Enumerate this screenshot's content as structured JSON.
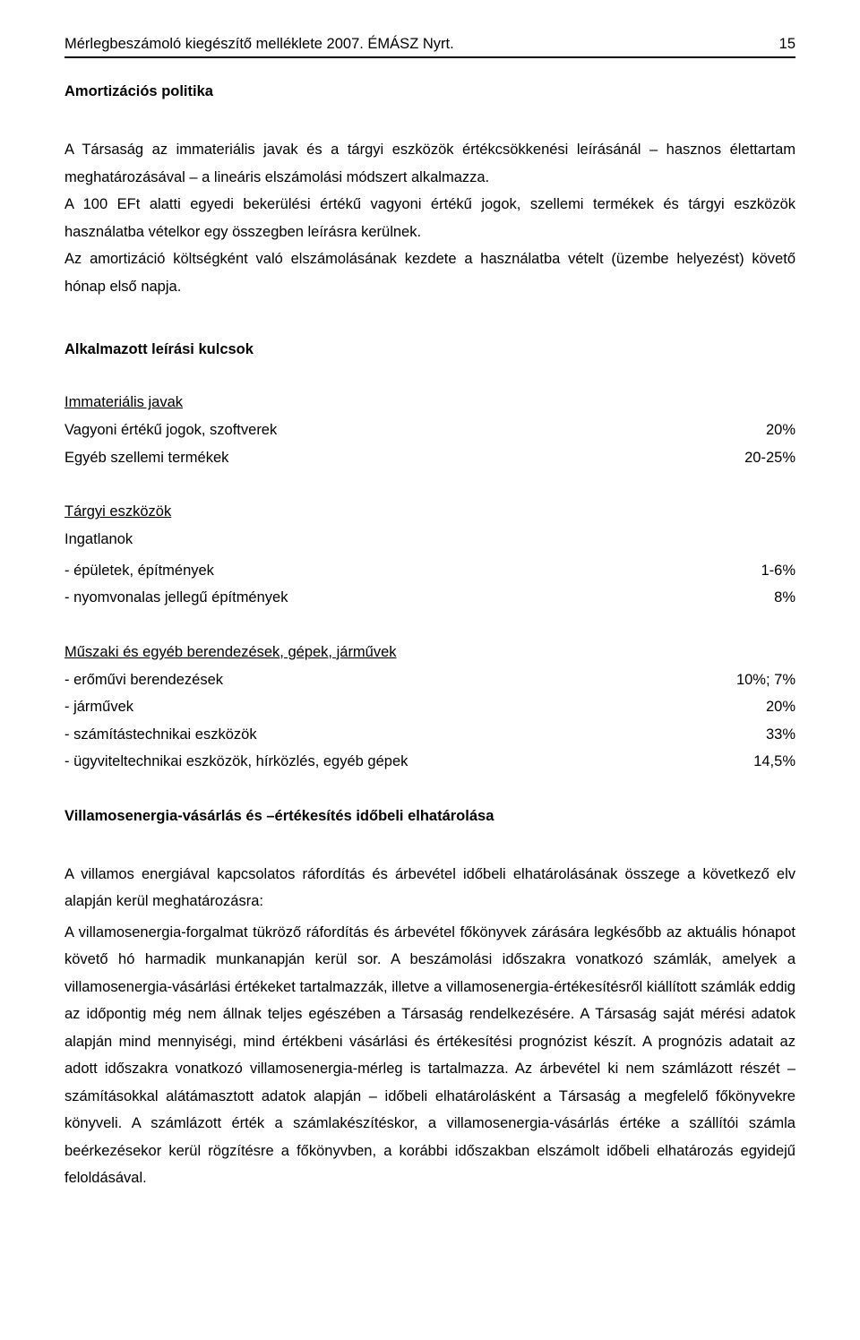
{
  "header": {
    "left": "Mérlegbeszámoló kiegészítő melléklete 2007. ÉMÁSZ Nyrt.",
    "page_number": "15"
  },
  "section_title": "Amortizációs politika",
  "paragraph_1": "A Társaság az immateriális javak és a tárgyi eszközök értékcsökkenési leírásánál – hasznos élettartam meghatározásával – a lineáris elszámolási módszert alkalmazza.",
  "paragraph_2": "A 100 EFt alatti egyedi bekerülési értékű vagyoni értékű jogok, szellemi termékek és tárgyi eszközök használatba vételkor egy összegben leírásra kerülnek.",
  "paragraph_3": "Az amortizáció költségként való elszámolásának kezdete a használatba vételt (üzembe helyezést) követő hónap első napja.",
  "rates_heading": "Alkalmazott leírási kulcsok",
  "group_immaterial": {
    "title": "Immateriális javak",
    "rows": [
      {
        "label": "Vagyoni értékű jogok, szoftverek",
        "value": "20%"
      },
      {
        "label": "Egyéb szellemi termékek",
        "value": "20-25%"
      }
    ]
  },
  "group_tangible": {
    "title": "Tárgyi eszközök",
    "subtitle": "Ingatlanok",
    "rows": [
      {
        "label": "- épületek, építmények",
        "value": "1-6%"
      },
      {
        "label": "- nyomvonalas jellegű építmények",
        "value": "8%"
      }
    ]
  },
  "group_machinery": {
    "title": "Műszaki és egyéb berendezések, gépek, járművek",
    "rows": [
      {
        "label": "- erőművi berendezések",
        "value": "10%; 7%"
      },
      {
        "label": "- járművek",
        "value": "20%"
      },
      {
        "label": "- számítástechnikai eszközök",
        "value": "33%"
      },
      {
        "label": "- ügyviteltechnikai eszközök, hírközlés, egyéb gépek",
        "value": "14,5%"
      }
    ]
  },
  "section2_title": "Villamosenergia-vásárlás és –értékesítés időbeli elhatárolása",
  "s2_p1": "A villamos energiával kapcsolatos ráfordítás és árbevétel időbeli elhatárolásának összege a következő elv alapján kerül meghatározásra:",
  "s2_p2": "A villamosenergia-forgalmat tükröző ráfordítás és árbevétel főkönyvek zárására legkésőbb az aktuális hónapot követő hó harmadik munkanapján kerül sor. A beszámolási időszakra vonatkozó számlák, amelyek a villamosenergia-vásárlási értékeket tartalmazzák, illetve a villamosenergia-értékesítésről kiállított számlák eddig az időpontig még nem állnak teljes egészében a Társaság rendelkezésére. A Társaság saját mérési adatok alapján mind mennyiségi, mind értékbeni vásárlási és értékesítési prognózist készít. A prognózis adatait az adott időszakra vonatkozó villamosenergia-mérleg is tartalmazza. Az árbevétel ki nem számlázott részét – számításokkal alátámasztott adatok alapján – időbeli elhatárolásként a Társaság a megfelelő főkönyvekre könyveli. A számlázott érték a számlakészítéskor, a villamosenergia-vásárlás értéke a szállítói számla beérkezésekor kerül rögzítésre a főkönyvben, a korábbi időszakban elszámolt időbeli elhatározás egyidejű feloldásával."
}
